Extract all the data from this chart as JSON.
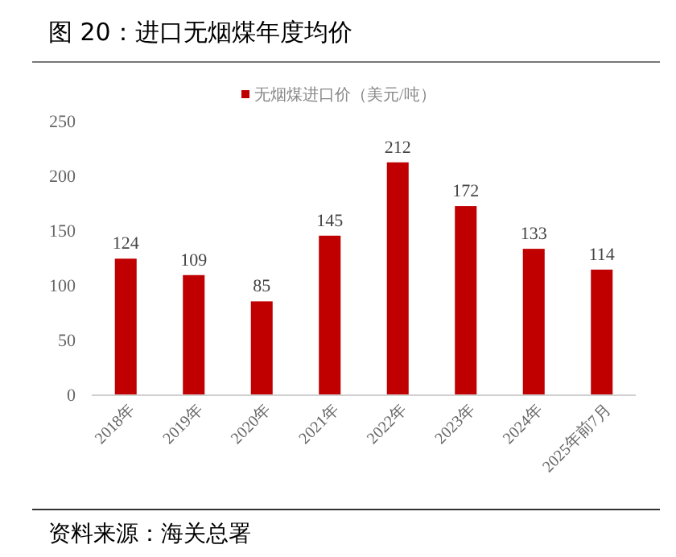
{
  "chart_data": {
    "type": "bar",
    "title": "图 20：进口无烟煤年度均价",
    "categories": [
      "2018年",
      "2019年",
      "2020年",
      "2021年",
      "2022年",
      "2023年",
      "2024年",
      "2025年前7月"
    ],
    "series": [
      {
        "name": "无烟煤进口价（美元/吨）",
        "color": "#c00000",
        "values": [
          124,
          109,
          85,
          145,
          212,
          172,
          133,
          114
        ]
      }
    ],
    "ylim": [
      0,
      250
    ],
    "yticks": [
      0,
      50,
      100,
      150,
      200,
      250
    ],
    "grid": false,
    "legend": "top",
    "data_labels": true,
    "annotations": [
      "资料来源：海关总署"
    ]
  }
}
